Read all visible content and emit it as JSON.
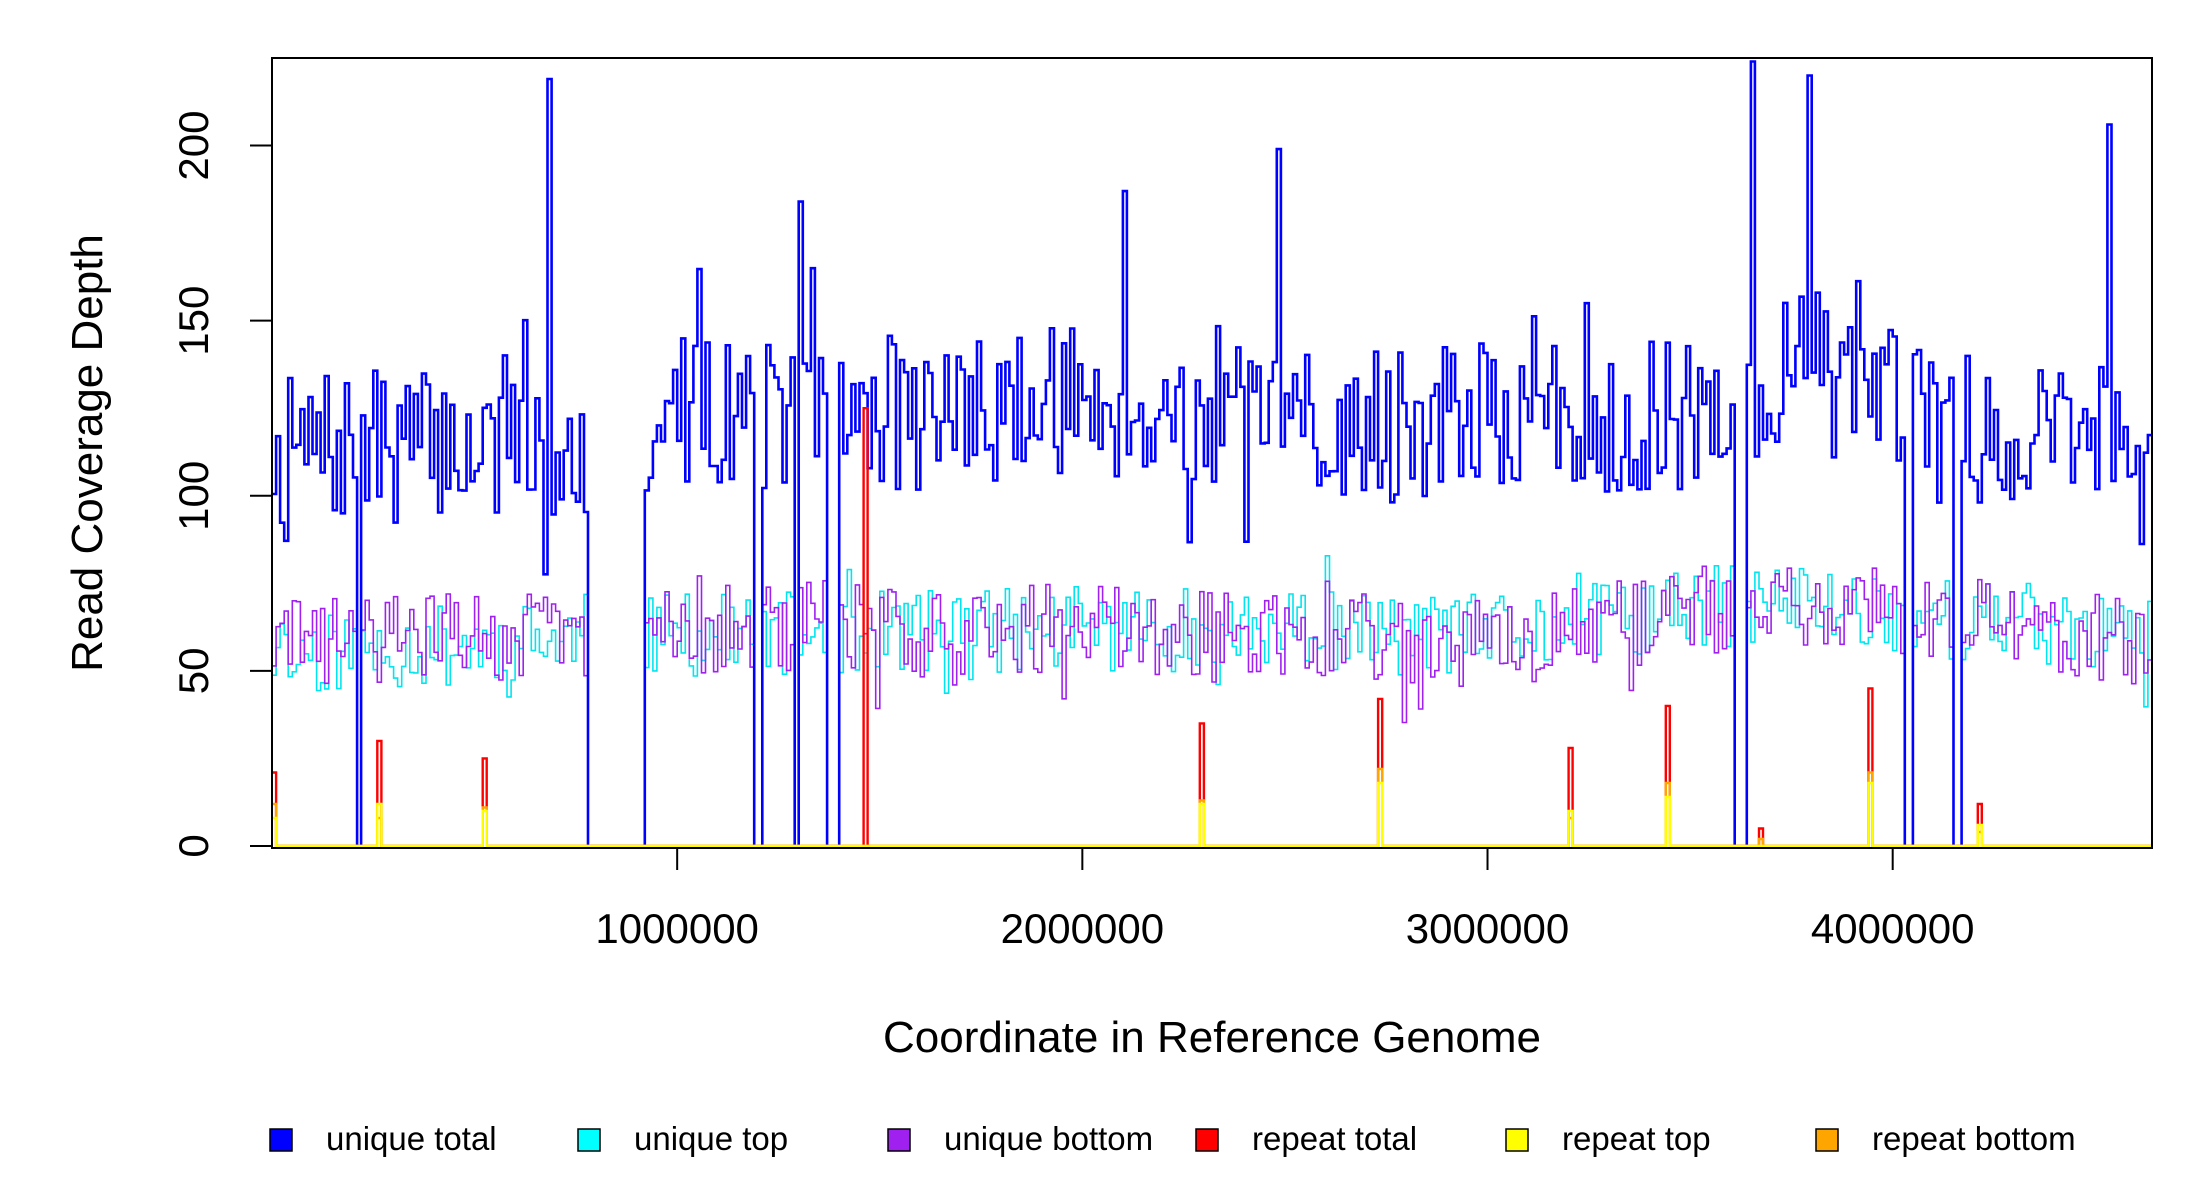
{
  "chart_data": {
    "type": "line",
    "xlabel": "Coordinate in Reference Genome",
    "ylabel": "Read Coverage Depth",
    "xlim": [
      0,
      4640000
    ],
    "ylim": [
      0,
      225
    ],
    "x_ticks": [
      1000000,
      2000000,
      3000000,
      4000000
    ],
    "x_tick_labels": [
      "1000000",
      "2000000",
      "3000000",
      "4000000"
    ],
    "y_ticks": [
      0,
      50,
      100,
      150,
      200
    ],
    "y_tick_labels": [
      "0",
      "50",
      "100",
      "150",
      "200"
    ],
    "grid": false,
    "legend_position": "bottom",
    "bin_width": 10000,
    "gap_regions": [
      [
        210000,
        220000
      ],
      [
        780000,
        920000
      ],
      [
        1190000,
        1210000
      ],
      [
        1290000,
        1300000
      ],
      [
        1370000,
        1400000
      ],
      [
        3610000,
        3640000
      ],
      [
        4030000,
        4050000
      ],
      [
        4150000,
        4170000
      ]
    ],
    "spikes": [
      {
        "x": 680000,
        "unique_total": 219
      },
      {
        "x": 3650000,
        "unique_total": 224
      },
      {
        "x": 3790000,
        "unique_total": 220
      },
      {
        "x": 1300000,
        "unique_total": 184
      },
      {
        "x": 2100000,
        "unique_total": 187
      },
      {
        "x": 2480000,
        "unique_total": 199
      },
      {
        "x": 4530000,
        "unique_total": 206
      }
    ],
    "series": [
      {
        "name": "unique total",
        "color": "#0000ff",
        "mean": [
          [
            0,
            112
          ],
          [
            400000,
            115
          ],
          [
            800000,
            112
          ],
          [
            1000000,
            125
          ],
          [
            1500000,
            122
          ],
          [
            2000000,
            128
          ],
          [
            2500000,
            118
          ],
          [
            3000000,
            122
          ],
          [
            3500000,
            122
          ],
          [
            3800000,
            140
          ],
          [
            4100000,
            120
          ],
          [
            4640000,
            120
          ]
        ],
        "amplitude": 22
      },
      {
        "name": "unique top",
        "color": "#00e5ee",
        "mean": [
          [
            0,
            55
          ],
          [
            1000000,
            60
          ],
          [
            2000000,
            62
          ],
          [
            3000000,
            60
          ],
          [
            3700000,
            70
          ],
          [
            4640000,
            60
          ]
        ],
        "amplitude": 12
      },
      {
        "name": "unique bottom",
        "color": "#a020f0",
        "mean": [
          [
            0,
            58
          ],
          [
            1000000,
            62
          ],
          [
            2000000,
            62
          ],
          [
            3000000,
            58
          ],
          [
            3700000,
            70
          ],
          [
            4640000,
            58
          ]
        ],
        "amplitude": 13
      },
      {
        "name": "repeat total",
        "color": "#ff0000",
        "points": [
          [
            5000,
            21
          ],
          [
            265000,
            30
          ],
          [
            520000,
            25
          ],
          [
            1460000,
            125
          ],
          [
            2290000,
            35
          ],
          [
            2730000,
            42
          ],
          [
            3200000,
            28
          ],
          [
            3440000,
            40
          ],
          [
            3670000,
            5
          ],
          [
            3940000,
            45
          ],
          [
            4210000,
            12
          ]
        ]
      },
      {
        "name": "repeat top",
        "color": "#ffff00",
        "points": [
          [
            5000,
            8
          ],
          [
            265000,
            12
          ],
          [
            520000,
            10
          ],
          [
            2290000,
            12
          ],
          [
            2730000,
            18
          ],
          [
            3200000,
            10
          ],
          [
            3440000,
            14
          ],
          [
            3940000,
            18
          ],
          [
            4210000,
            6
          ]
        ]
      },
      {
        "name": "repeat bottom",
        "color": "#ffa500",
        "points": [
          [
            5000,
            12
          ],
          [
            265000,
            8
          ],
          [
            520000,
            11
          ],
          [
            2290000,
            13
          ],
          [
            2730000,
            22
          ],
          [
            3200000,
            8
          ],
          [
            3440000,
            18
          ],
          [
            3670000,
            2
          ],
          [
            3940000,
            21
          ],
          [
            4210000,
            4
          ]
        ]
      }
    ],
    "legend": [
      {
        "label": "unique total",
        "color": "#0000ff"
      },
      {
        "label": "unique top",
        "color": "#00ffff"
      },
      {
        "label": "unique bottom",
        "color": "#a020f0"
      },
      {
        "label": "repeat total",
        "color": "#ff0000"
      },
      {
        "label": "repeat top",
        "color": "#ffff00"
      },
      {
        "label": "repeat bottom",
        "color": "#ffa500"
      }
    ]
  }
}
